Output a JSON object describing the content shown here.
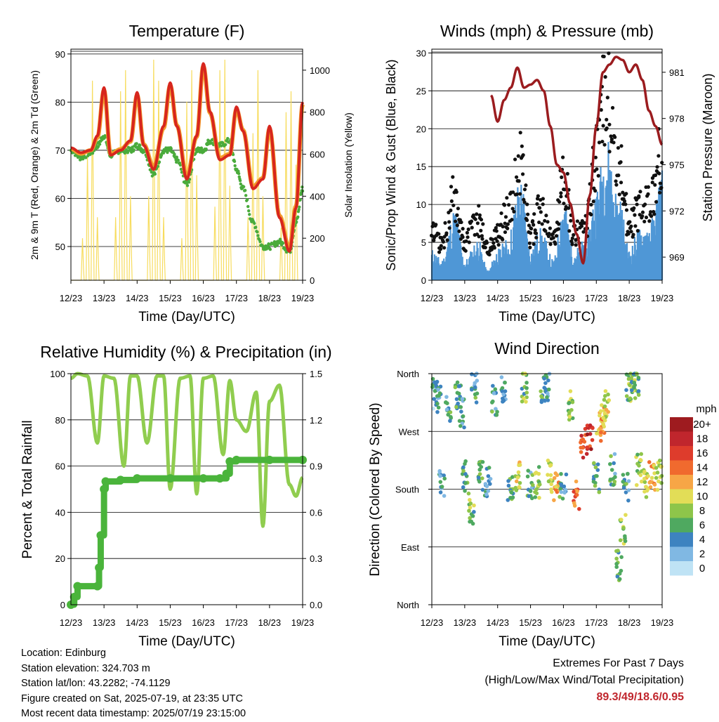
{
  "panels": {
    "temperature": {
      "title": "Temperature (F)",
      "ylabel_left": "2m & 9m T (Red, Orange) & 2m Td (Green)",
      "ylabel_right": "Solar Insolation (Yellow)",
      "xlabel": "Time (Day/UTC)",
      "yticks_left": [
        "90",
        "80",
        "70",
        "60",
        "50"
      ],
      "yticks_right": [
        "1000",
        "800",
        "600",
        "400",
        "200",
        "0"
      ]
    },
    "winds": {
      "title": "Winds (mph) & Pressure (mb)",
      "ylabel_left": "Sonic/Prop Wind & Gust (Blue, Black)",
      "ylabel_right": "Station Pressure (Maroon)",
      "xlabel": "Time (Day/UTC)",
      "yticks_left": [
        "30",
        "25",
        "20",
        "15",
        "10",
        "5",
        "0"
      ],
      "yticks_right": [
        "981",
        "978",
        "975",
        "972",
        "969"
      ]
    },
    "humidity": {
      "title": "Relative Humidity (%) & Precipitation (in)",
      "ylabel_left": "Percent & Total Rainfall",
      "xlabel": "Time (Day/UTC)",
      "yticks_left": [
        "100",
        "80",
        "60",
        "40",
        "20",
        "0"
      ],
      "yticks_right": [
        "1.5",
        "1.2",
        "0.9",
        "0.6",
        "0.3",
        "0.0"
      ]
    },
    "direction": {
      "title": "Wind Direction",
      "ylabel_left": "Direction (Colored By Speed)",
      "xlabel": "Time (Day/UTC)",
      "yticks_left": [
        "North",
        "West",
        "South",
        "East",
        "North"
      ]
    }
  },
  "xticks": [
    "12/23",
    "13/23",
    "14/23",
    "15/23",
    "16/23",
    "17/23",
    "18/23",
    "19/23"
  ],
  "legend": {
    "title": "mph",
    "labels": [
      "20+",
      "18",
      "16",
      "14",
      "12",
      "10",
      "8",
      "6",
      "4",
      "2",
      "0"
    ],
    "colors": [
      "#9e1b1f",
      "#c0262d",
      "#de3c2c",
      "#f06a2e",
      "#f7a646",
      "#e2dd57",
      "#8ec54a",
      "#4fa960",
      "#3d83c0",
      "#80b8e3",
      "#bfe3f5"
    ]
  },
  "info": {
    "location": "Location: Edinburg",
    "elevation": "Station elevation: 324.703 m",
    "latlon": "Station lat/lon: 43.2282; -74.1129",
    "created": "Figure created on Sat, 2025-07-19, at 23:35 UTC",
    "recent": "Most recent data timestamp: 2025/07/19 23:15:00"
  },
  "extremes": {
    "line1": "Extremes For Past 7 Days",
    "line2": "(High/Low/Max Wind/Total Precipitation)",
    "values": "89.3/49/18.6/0.95"
  },
  "chart_data": [
    {
      "type": "line",
      "title": "Temperature (F)",
      "xlabel": "Time (Day/UTC)",
      "ylabel": "2m & 9m T (Red, Orange) & 2m Td (Green)",
      "ylabel_right": "Solar Insolation (Yellow)",
      "x_range_days": [
        12,
        19
      ],
      "ylim": [
        43,
        91
      ],
      "ylim_right": [
        0,
        1100
      ],
      "series": [
        {
          "key": "t2m",
          "color": "#d7261e",
          "x": [
            12.0,
            12.3,
            12.6,
            12.8,
            13.0,
            13.2,
            13.5,
            13.8,
            14.0,
            14.2,
            14.5,
            14.8,
            15.0,
            15.2,
            15.5,
            15.8,
            16.0,
            16.2,
            16.5,
            16.8,
            17.0,
            17.2,
            17.5,
            17.8,
            18.0,
            18.3,
            18.6,
            18.8,
            19.0
          ],
          "values": [
            70.5,
            69.5,
            70,
            73,
            83,
            69,
            70,
            72,
            82,
            71,
            66,
            75,
            84,
            75,
            64,
            73,
            88,
            78,
            68,
            69,
            79,
            74,
            62,
            64,
            75,
            56,
            49,
            58,
            80
          ]
        },
        {
          "key": "t9m",
          "color": "#f39a2b",
          "x": [
            12.0,
            12.3,
            12.6,
            12.8,
            13.0,
            13.2,
            13.5,
            13.8,
            14.0,
            14.2,
            14.5,
            14.8,
            15.0,
            15.2,
            15.5,
            15.8,
            16.0,
            16.2,
            16.5,
            16.8,
            17.0,
            17.2,
            17.5,
            17.8,
            18.0,
            18.3,
            18.6,
            18.8,
            19.0
          ],
          "values": [
            70.3,
            69.3,
            70,
            72.6,
            82.5,
            69.2,
            70.2,
            71.8,
            81.5,
            71.2,
            66.5,
            74.6,
            83.5,
            75.2,
            64.5,
            72.8,
            87.5,
            77.8,
            68.4,
            69.2,
            78.5,
            74.2,
            62.5,
            64.2,
            74.5,
            56.4,
            49.6,
            58.4,
            79.5
          ]
        },
        {
          "key": "td2m",
          "color": "#4aab3c",
          "x": [
            12.0,
            12.3,
            12.6,
            12.8,
            13.0,
            13.2,
            13.5,
            13.8,
            14.0,
            14.2,
            14.5,
            14.8,
            15.0,
            15.2,
            15.5,
            15.8,
            16.0,
            16.2,
            16.5,
            16.8,
            17.0,
            17.2,
            17.5,
            17.8,
            18.0,
            18.3,
            18.6,
            18.8,
            19.0
          ],
          "values": [
            70,
            68.5,
            69.5,
            71,
            73,
            69,
            70,
            70,
            71,
            70,
            65,
            70,
            70,
            68,
            63,
            70,
            70,
            72,
            71,
            72,
            66,
            62,
            55,
            50,
            50,
            51,
            49,
            55,
            62
          ]
        },
        {
          "key": "solar",
          "axis": "right",
          "color": "#f7dc5e",
          "x": [
            12.35,
            12.5,
            12.65,
            12.8,
            13.35,
            13.5,
            13.65,
            13.8,
            14.35,
            14.5,
            14.65,
            14.8,
            15.35,
            15.5,
            15.65,
            15.8,
            16.35,
            16.5,
            16.65,
            16.8,
            17.35,
            17.5,
            17.65,
            17.8,
            18.35,
            18.5,
            18.65,
            18.8
          ],
          "values": [
            200,
            600,
            950,
            300,
            300,
            900,
            1000,
            400,
            400,
            1050,
            950,
            300,
            200,
            850,
            1000,
            500,
            350,
            1000,
            1050,
            450,
            300,
            700,
            1000,
            400,
            250,
            800,
            900,
            550
          ]
        }
      ]
    },
    {
      "type": "line",
      "title": "Winds (mph) & Pressure (mb)",
      "xlabel": "Time (Day/UTC)",
      "ylabel": "Sonic/Prop Wind & Gust (Blue, Black)",
      "ylabel_right": "Station Pressure (Maroon)",
      "x_range_days": [
        12,
        19
      ],
      "ylim": [
        0,
        30.5
      ],
      "ylim_right": [
        967.5,
        982.5
      ],
      "series": [
        {
          "key": "wind",
          "color": "#4f97d6",
          "x": [
            12.0,
            12.3,
            12.7,
            13.0,
            13.4,
            13.7,
            14.0,
            14.3,
            14.7,
            15.0,
            15.3,
            15.7,
            16.0,
            16.3,
            16.7,
            17.0,
            17.3,
            17.7,
            18.0,
            18.3,
            18.7,
            19.0
          ],
          "values": [
            3,
            2,
            7,
            2,
            4,
            1,
            3,
            4,
            10,
            3,
            5,
            2,
            8,
            3,
            4,
            9,
            14,
            8,
            3,
            5,
            6,
            11
          ]
        },
        {
          "key": "gust",
          "color": "#111111",
          "x": [
            12.0,
            12.3,
            12.7,
            13.0,
            13.4,
            13.7,
            14.0,
            14.3,
            14.7,
            15.0,
            15.3,
            15.7,
            16.0,
            16.3,
            16.7,
            17.0,
            17.3,
            17.7,
            18.0,
            18.3,
            18.7,
            19.0
          ],
          "values": [
            6,
            5,
            11,
            5,
            8,
            4,
            6,
            9,
            15,
            6,
            9,
            5,
            14,
            6,
            8,
            16,
            26,
            15,
            7,
            9,
            11,
            17
          ]
        },
        {
          "key": "pressure",
          "axis": "right",
          "color": "#9b1c1f",
          "x": [
            13.8,
            14.0,
            14.2,
            14.4,
            14.6,
            14.8,
            15.0,
            15.2,
            15.4,
            15.6,
            15.8,
            16.0,
            16.2,
            16.4,
            16.6,
            16.8,
            17.0,
            17.2,
            17.4,
            17.6,
            17.8,
            18.0,
            18.2,
            18.4,
            18.6,
            18.8,
            19.0
          ],
          "values": [
            979.5,
            977.8,
            979.2,
            980.0,
            981.3,
            980.0,
            980.2,
            980.5,
            979.8,
            977.5,
            975.0,
            974.5,
            972.5,
            970.5,
            968.6,
            973.0,
            977.5,
            981.0,
            981.5,
            982.0,
            981.8,
            981.0,
            981.5,
            980.5,
            978.5,
            977.5,
            976.3
          ]
        }
      ]
    },
    {
      "type": "line",
      "title": "Relative Humidity (%) & Precipitation (in)",
      "xlabel": "Time (Day/UTC)",
      "ylabel": "Percent & Total Rainfall",
      "x_range_days": [
        12,
        19
      ],
      "ylim": [
        0,
        100
      ],
      "ylim_right": [
        0,
        1.5
      ],
      "series": [
        {
          "key": "rh",
          "color": "#90cd4f",
          "x": [
            12.0,
            12.2,
            12.5,
            12.8,
            13.0,
            13.3,
            13.6,
            13.8,
            14.0,
            14.3,
            14.6,
            14.8,
            15.0,
            15.3,
            15.6,
            15.8,
            16.0,
            16.3,
            16.6,
            16.8,
            17.0,
            17.3,
            17.6,
            17.8,
            18.0,
            18.3,
            18.6,
            18.8,
            19.0
          ],
          "values": [
            98,
            100,
            99,
            70,
            99,
            98,
            60,
            99,
            99,
            70,
            99,
            99,
            50,
            98,
            99,
            48,
            98,
            99,
            65,
            97,
            80,
            75,
            92,
            34,
            88,
            95,
            52,
            47,
            55
          ]
        },
        {
          "key": "precip",
          "axis": "right",
          "color": "#4ab43b",
          "x": [
            12.0,
            12.1,
            12.2,
            12.8,
            12.85,
            12.9,
            13.0,
            13.05,
            13.5,
            14.0,
            15.0,
            16.0,
            16.5,
            16.7,
            16.8,
            17.0,
            18.0,
            19.0
          ],
          "values": [
            0.0,
            0.05,
            0.12,
            0.12,
            0.24,
            0.45,
            0.75,
            0.8,
            0.81,
            0.82,
            0.82,
            0.82,
            0.82,
            0.85,
            0.93,
            0.94,
            0.94,
            0.94
          ]
        }
      ]
    },
    {
      "type": "scatter",
      "title": "Wind Direction",
      "xlabel": "Time (Day/UTC)",
      "ylabel": "Direction (Colored By Speed)",
      "x_range_days": [
        12,
        19
      ],
      "ylim_deg": [
        0,
        360
      ],
      "series": [
        {
          "key": "direction",
          "x": [
            12.1,
            12.2,
            12.3,
            12.5,
            12.8,
            12.9,
            13.0,
            13.2,
            13.3,
            13.5,
            13.7,
            13.9,
            14.2,
            14.4,
            14.6,
            14.8,
            15.0,
            15.2,
            15.4,
            15.5,
            15.6,
            15.8,
            16.0,
            16.2,
            16.4,
            16.6,
            16.8,
            17.0,
            17.1,
            17.2,
            17.3,
            17.5,
            17.7,
            17.8,
            17.9,
            18.0,
            18.1,
            18.2,
            18.3,
            18.5,
            18.7,
            18.9
          ],
          "values": [
            330,
            320,
            190,
            310,
            330,
            300,
            200,
            150,
            340,
            200,
            190,
            320,
            330,
            180,
            200,
            340,
            190,
            190,
            330,
            340,
            200,
            180,
            190,
            310,
            170,
            250,
            260,
            200,
            280,
            290,
            310,
            210,
            60,
            120,
            180,
            340,
            345,
            350,
            210,
            190,
            200,
            200
          ],
          "speeds": [
            3,
            4,
            4,
            5,
            6,
            4,
            5,
            7,
            5,
            6,
            4,
            5,
            4,
            6,
            10,
            7,
            5,
            8,
            6,
            4,
            9,
            11,
            4,
            8,
            14,
            16,
            17,
            6,
            12,
            12,
            10,
            5,
            6,
            8,
            5,
            7,
            7,
            5,
            8,
            10,
            12,
            9
          ]
        }
      ]
    }
  ]
}
